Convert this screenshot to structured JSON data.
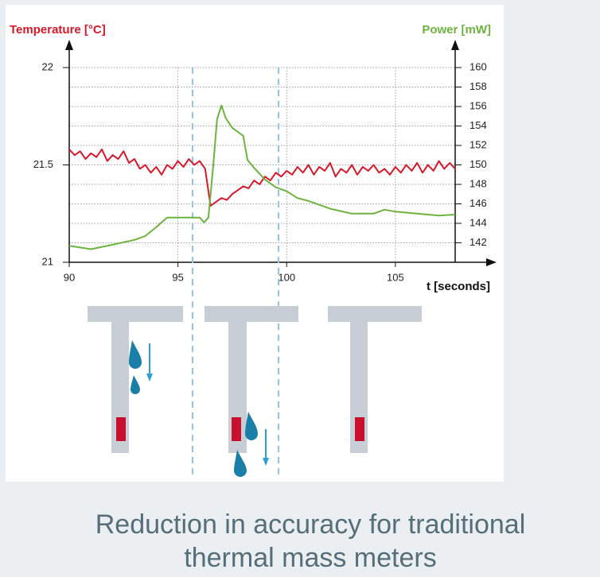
{
  "chart_data": {
    "type": "line",
    "y_label": "Temperature [°C]",
    "y2_label": "Power [mW]",
    "x_label": "t [seconds]",
    "xlim": [
      90,
      107.75
    ],
    "xticks": [
      90,
      95,
      100,
      105
    ],
    "ylim": [
      21,
      22
    ],
    "yticks": [
      21,
      21.5,
      22
    ],
    "y2lim": [
      140,
      160
    ],
    "y2ticks": [
      142,
      144,
      146,
      148,
      150,
      152,
      154,
      156,
      158,
      160
    ],
    "grid": true,
    "series": [
      {
        "name": "Temperature [°C]",
        "color": "#d7182a",
        "axis": "y",
        "x": [
          90,
          90.25,
          90.5,
          90.75,
          91,
          91.25,
          91.5,
          91.75,
          92,
          92.25,
          92.5,
          92.75,
          93,
          93.25,
          93.5,
          93.75,
          94,
          94.25,
          94.5,
          94.75,
          95,
          95.25,
          95.5,
          95.75,
          96,
          96.25,
          96.5,
          96.75,
          97,
          97.25,
          97.5,
          97.75,
          98,
          98.25,
          98.5,
          98.75,
          99,
          99.25,
          99.5,
          99.75,
          100,
          100.25,
          100.5,
          100.75,
          101,
          101.25,
          101.5,
          101.75,
          102,
          102.25,
          102.5,
          102.75,
          103,
          103.25,
          103.5,
          103.75,
          104,
          104.25,
          104.5,
          104.75,
          105,
          105.25,
          105.5,
          105.75,
          106,
          106.25,
          106.5,
          106.75,
          107,
          107.25,
          107.5,
          107.75
        ],
        "values": [
          21.58,
          21.55,
          21.57,
          21.53,
          21.56,
          21.54,
          21.58,
          21.52,
          21.55,
          21.53,
          21.57,
          21.51,
          21.53,
          21.48,
          21.5,
          21.46,
          21.49,
          21.45,
          21.5,
          21.48,
          21.52,
          21.49,
          21.53,
          21.5,
          21.52,
          21.48,
          21.29,
          21.31,
          21.33,
          21.32,
          21.35,
          21.37,
          21.39,
          21.38,
          21.42,
          21.4,
          21.44,
          21.42,
          21.46,
          21.44,
          21.47,
          21.45,
          21.49,
          21.46,
          21.5,
          21.45,
          21.49,
          21.47,
          21.51,
          21.44,
          21.48,
          21.46,
          21.5,
          21.45,
          21.49,
          21.47,
          21.5,
          21.46,
          21.48,
          21.45,
          21.49,
          21.46,
          21.5,
          21.47,
          21.51,
          21.46,
          21.5,
          21.47,
          21.52,
          21.48,
          21.51,
          21.48
        ]
      },
      {
        "name": "Power [mW]",
        "color": "#6db33f",
        "axis": "y2",
        "x": [
          90,
          91,
          92,
          93,
          93.5,
          94,
          94.5,
          95,
          96,
          96.2,
          96.4,
          96.6,
          96.8,
          97,
          97.2,
          97.5,
          98,
          98.2,
          98.5,
          99,
          99.5,
          100,
          100.5,
          101,
          102,
          103,
          104,
          104.5,
          105,
          106,
          107,
          107.75
        ],
        "values": [
          141.7,
          141.35,
          141.8,
          142.3,
          142.7,
          143.6,
          144.6,
          144.6,
          144.6,
          144.1,
          144.6,
          149.3,
          154.7,
          156.1,
          154.8,
          153.8,
          153,
          150.5,
          149.7,
          148.5,
          147.7,
          147.3,
          146.6,
          146.3,
          145.5,
          145,
          145,
          145.4,
          145.2,
          145,
          144.8,
          144.9
        ]
      }
    ]
  },
  "caption": "Reduction in accuracy for traditional thermal mass meters"
}
